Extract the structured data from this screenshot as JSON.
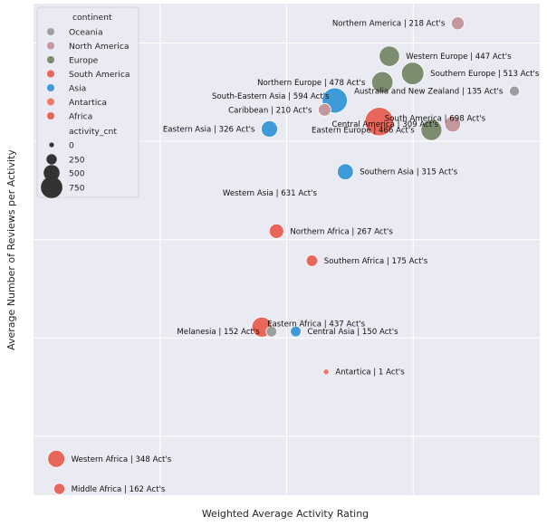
{
  "chart_data": {
    "type": "scatter",
    "title": "",
    "xlabel": "Weighted Average Activity Rating",
    "ylabel": "Average Number of Reviews per Activity",
    "xlim": [
      0,
      1000
    ],
    "ylim": [
      0,
      1000
    ],
    "x_tick_labels_visible": false,
    "y_tick_labels_visible": false,
    "grid": true,
    "legend": {
      "placement": "top-left",
      "hue_title": "continent",
      "size_title": "activity_cnt",
      "size_entries": [
        0,
        250,
        500,
        750
      ]
    },
    "colors": {
      "Oceania": "#9e9e9e",
      "North America": "#c4979f",
      "Europe": "#7b8c6f",
      "South America": "#e8665a",
      "Asia": "#3f9bd8",
      "Antartica": "#f07a6c",
      "Africa": "#e8665a"
    },
    "series": [
      {
        "name": "Oceania",
        "points": [
          {
            "label": "Australia and New Zealand | 135 Act's",
            "x": 950,
            "y": 822,
            "size": 135
          },
          {
            "label": "Melanesia | 152 Act's",
            "x": 470,
            "y": 333,
            "size": 152
          }
        ]
      },
      {
        "name": "North America",
        "points": [
          {
            "label": "Northern America | 218 Act's",
            "x": 838,
            "y": 960,
            "size": 218
          },
          {
            "label": "Caribbean | 210 Act's",
            "x": 575,
            "y": 784,
            "size": 210
          },
          {
            "label": "Central America | 309 Act's",
            "x": 828,
            "y": 755,
            "size": 309
          }
        ]
      },
      {
        "name": "Europe",
        "points": [
          {
            "label": "Western Europe | 447 Act's",
            "x": 703,
            "y": 893,
            "size": 447
          },
          {
            "label": "Southern Europe | 513 Act's",
            "x": 749,
            "y": 858,
            "size": 513
          },
          {
            "label": "Northern Europe | 478 Act's",
            "x": 689,
            "y": 840,
            "size": 478
          },
          {
            "label": "Eastern Europe | 466 Act's",
            "x": 786,
            "y": 743,
            "size": 466
          }
        ]
      },
      {
        "name": "South America",
        "points": [
          {
            "label": "South America | 698 Act's",
            "x": 683,
            "y": 760,
            "size": 698
          }
        ]
      },
      {
        "name": "Asia",
        "points": [
          {
            "label": "South-Eastern Asia | 594 Act's",
            "x": 595,
            "y": 803,
            "size": 594
          },
          {
            "label": "Eastern Asia | 326 Act's",
            "x": 466,
            "y": 745,
            "size": 326
          },
          {
            "label": "Southern Asia | 315 Act's",
            "x": 616,
            "y": 658,
            "size": 315
          },
          {
            "label": "Central Asia | 150 Act's",
            "x": 518,
            "y": 333,
            "size": 150
          }
        ]
      },
      {
        "name": "Antartica",
        "points": [
          {
            "label": "Antartica | 1 Act's",
            "x": 578,
            "y": 251,
            "size": 1
          }
        ]
      },
      {
        "name": "Africa",
        "points": [
          {
            "label": "Northern Africa | 267 Act's",
            "x": 480,
            "y": 537,
            "size": 267
          },
          {
            "label": "Southern Africa | 175 Act's",
            "x": 550,
            "y": 477,
            "size": 175
          },
          {
            "label": "Eastern Africa | 437 Act's",
            "x": 451,
            "y": 342,
            "size": 437
          },
          {
            "label": "Western Africa | 348 Act's",
            "x": 45,
            "y": 74,
            "size": 348
          },
          {
            "label": "Middle Africa | 162 Act's",
            "x": 51,
            "y": 13,
            "size": 162
          }
        ]
      }
    ]
  }
}
